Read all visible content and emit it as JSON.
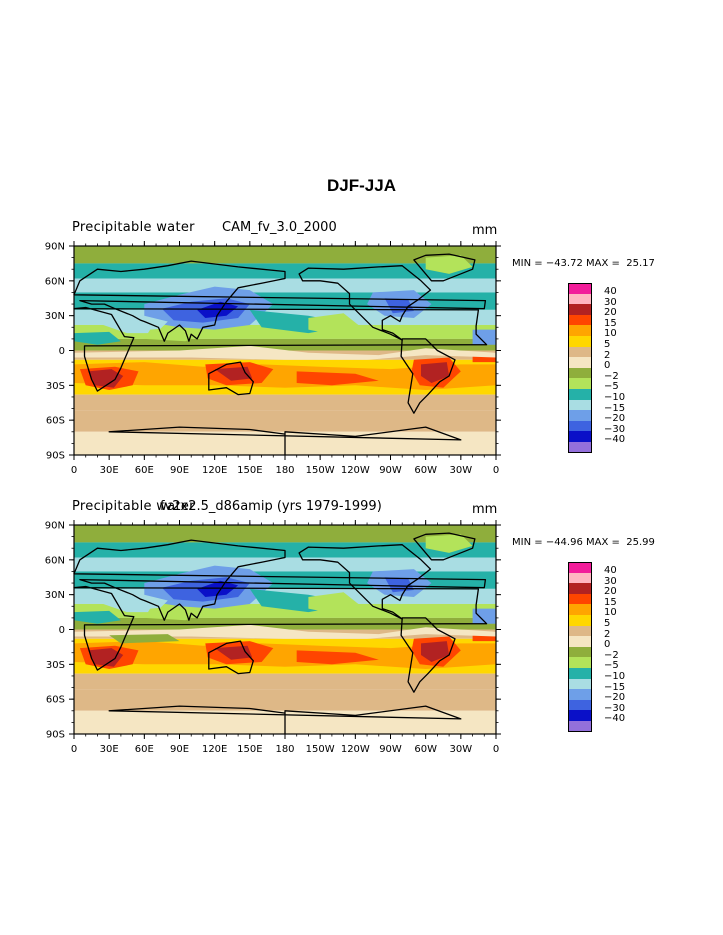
{
  "title": "DJF-JJA",
  "panels": [
    {
      "variable": "Precipitable water",
      "case": "CAM_fv_3.0_2000",
      "units": "mm",
      "min_label": "MIN =",
      "min": "−43.72",
      "max_label": "MAX =",
      "max": "25.17"
    },
    {
      "variable": "Precipitable water",
      "case": "fv2x2.5_d86amip (yrs 1979-1999)",
      "units": "mm",
      "min_label": "MIN =",
      "min": "−44.96",
      "max_label": "MAX =",
      "max": "25.99"
    }
  ],
  "legend": {
    "levels": [
      "40",
      "30",
      "20",
      "15",
      "10",
      "5",
      "2",
      "0",
      "−2",
      "−5",
      "−10",
      "−15",
      "−20",
      "−30",
      "−40"
    ],
    "colors": [
      "#f21d9a",
      "#ffb6c1",
      "#b22222",
      "#ff4500",
      "#ffa500",
      "#ffd700",
      "#deb887",
      "#f5e6c3",
      "#8fae3c",
      "#b3e35a",
      "#25b1a8",
      "#a9dde3",
      "#6e9fe8",
      "#3e63e0",
      "#0a10c8",
      "#9370db"
    ]
  },
  "chart_data": {
    "type": "heatmap",
    "title": "DJF-JJA",
    "x_ticks": [
      "0",
      "30E",
      "60E",
      "90E",
      "120E",
      "150E",
      "180",
      "150W",
      "120W",
      "90W",
      "60W",
      "30W",
      "0"
    ],
    "y_ticks": [
      "90N",
      "60N",
      "30N",
      "0",
      "30S",
      "60S",
      "90S"
    ],
    "xlim": [
      0,
      360
    ],
    "ylim": [
      -90,
      90
    ],
    "panels": [
      {
        "label": "CAM_fv_3.0_2000",
        "min": -43.72,
        "max": 25.17
      },
      {
        "label": "fv2x2.5_d86amip (yrs 1979-1999)",
        "min": -44.96,
        "max": 25.99
      }
    ]
  }
}
